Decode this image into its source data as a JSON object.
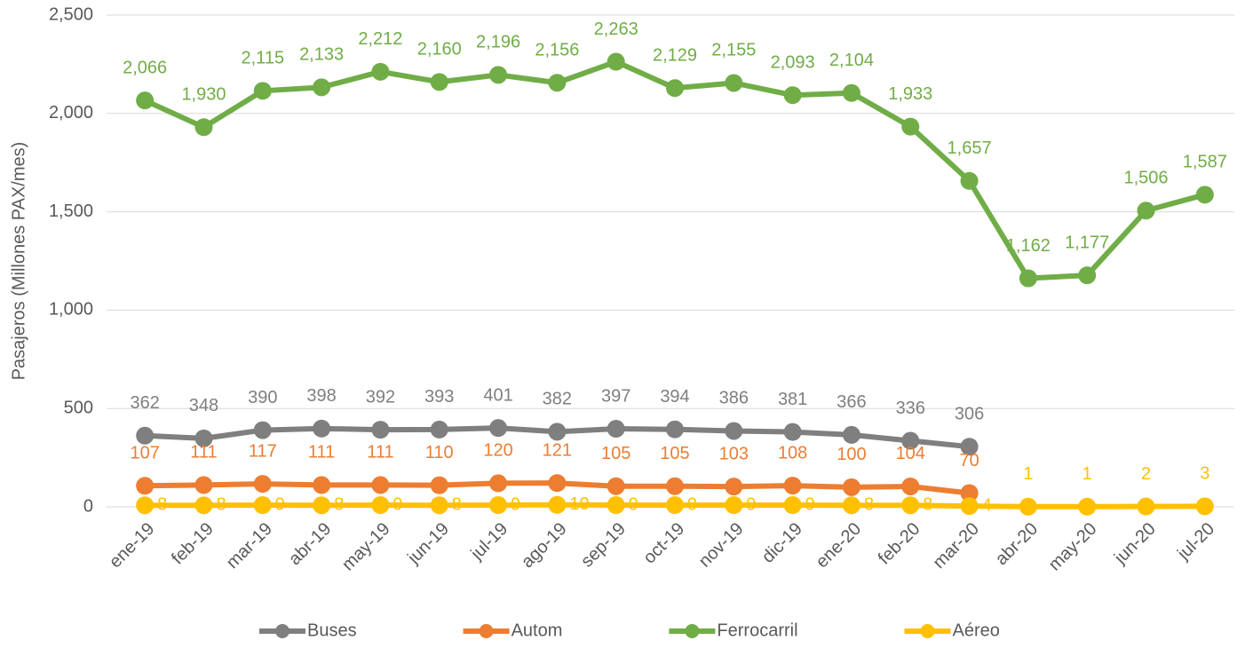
{
  "chart_data": {
    "type": "line",
    "y_label": "Pasajeros (Millones PAX/mes)",
    "categories": [
      "ene-19",
      "feb-19",
      "mar-19",
      "abr-19",
      "may-19",
      "jun-19",
      "jul-19",
      "ago-19",
      "sep-19",
      "oct-19",
      "nov-19",
      "dic-19",
      "ene-20",
      "feb-20",
      "mar-20",
      "abr-20",
      "may-20",
      "jun-20",
      "jul-20"
    ],
    "series": [
      {
        "name": "Buses",
        "color": "#7f7f7f",
        "values": [
          362,
          348,
          390,
          398,
          392,
          393,
          401,
          382,
          397,
          394,
          386,
          381,
          366,
          336,
          306,
          null,
          null,
          null,
          null
        ]
      },
      {
        "name": "Autom",
        "color": "#ed7d31",
        "values": [
          107,
          111,
          117,
          111,
          111,
          110,
          120,
          121,
          105,
          105,
          103,
          108,
          100,
          104,
          70,
          null,
          null,
          null,
          null
        ]
      },
      {
        "name": "Ferrocarril",
        "color": "#70ad47",
        "values": [
          2066,
          1930,
          2115,
          2133,
          2212,
          2160,
          2196,
          2156,
          2263,
          2129,
          2155,
          2093,
          2104,
          1933,
          1657,
          1162,
          1177,
          1506,
          1587
        ],
        "value_labels": [
          "2,066",
          "1,930",
          "2,115",
          "2,133",
          "2,212",
          "2,160",
          "2,196",
          "2,156",
          "2,263",
          "2,129",
          "2,155",
          "2,093",
          "2,104",
          "1,933",
          "1,657",
          "1,162",
          "1,177",
          "1,506",
          "1,587"
        ]
      },
      {
        "name": "Aéreo",
        "color": "#ffc000",
        "values": [
          8,
          8,
          9,
          8,
          9,
          8,
          9,
          10,
          9,
          9,
          9,
          9,
          8,
          8,
          4,
          1,
          1,
          2,
          3
        ]
      }
    ],
    "ylim": [
      0,
      2500
    ],
    "yticks": [
      0,
      500,
      {
        "value": 1000,
        "label": "1,000"
      },
      {
        "value": 1500,
        "label": "1,500"
      },
      {
        "value": 2000,
        "label": "2,000"
      },
      {
        "value": 2500,
        "label": "2,500"
      }
    ],
    "grid": true,
    "legend": "bottom"
  }
}
